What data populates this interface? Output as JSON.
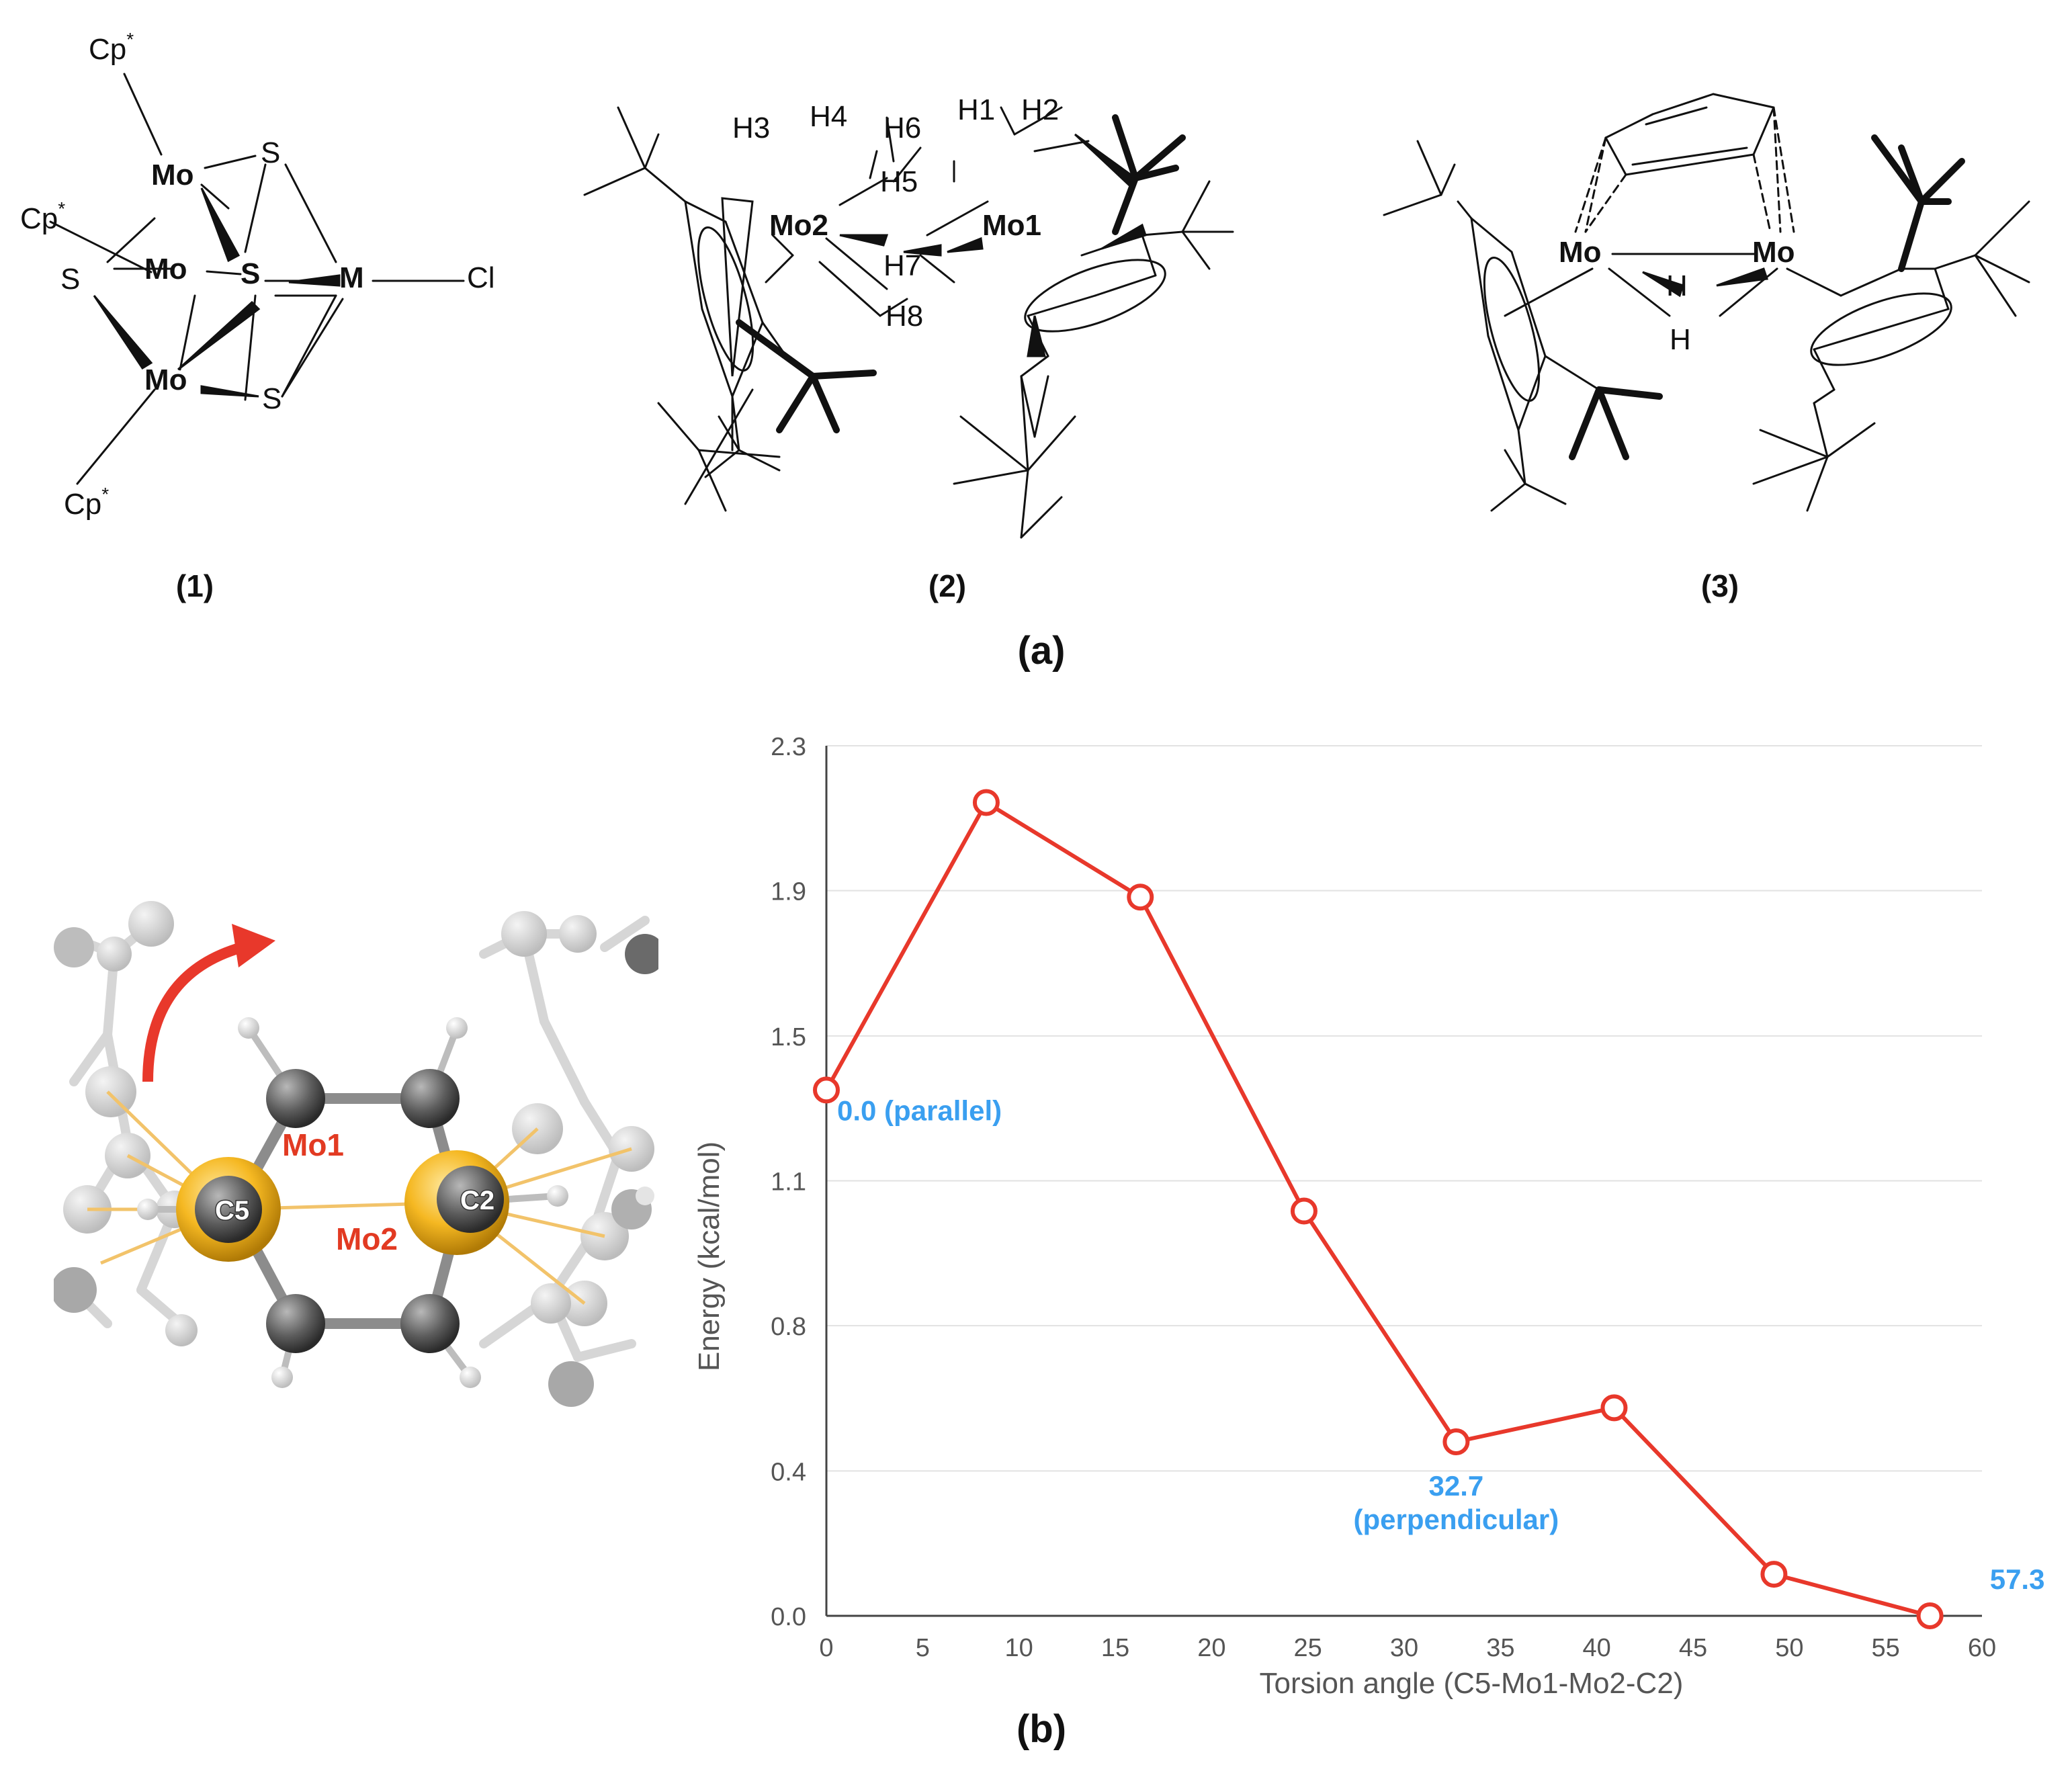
{
  "panel_a": {
    "label": "(a)",
    "compounds": [
      {
        "id": "(1)",
        "atoms": {
          "cp": "Cp",
          "star": "*",
          "mo": "Mo",
          "s": "S",
          "m": "M",
          "cl": "Cl"
        }
      },
      {
        "id": "(2)",
        "atoms": {
          "mo1": "Mo1",
          "mo2": "Mo2",
          "h1": "H1",
          "h2": "H2",
          "h3": "H3",
          "h4": "H4",
          "h5": "H5",
          "h6": "H6",
          "h7": "H7",
          "h8": "H8"
        }
      },
      {
        "id": "(3)",
        "atoms": {
          "mo": "Mo",
          "h": "H"
        }
      }
    ]
  },
  "panel_b": {
    "label": "(b)",
    "model_labels": {
      "mo1": "Mo1",
      "mo2": "Mo2",
      "c5": "C5",
      "c2": "C2"
    },
    "colors": {
      "series": "#e8382b",
      "annotation": "#3a9ff0",
      "arrow": "#e8382b",
      "mo_label": "#e23a22"
    }
  },
  "chart_data": {
    "type": "line",
    "title": "",
    "xlabel": "Torsion angle (C5-Mo1-Mo2-C2)",
    "ylabel": "Energy (kcal/mol)",
    "xlim": [
      0,
      60
    ],
    "ylim": [
      0.0,
      2.3
    ],
    "xticks": [
      "0",
      "5",
      "10",
      "15",
      "20",
      "25",
      "30",
      "35",
      "40",
      "45",
      "50",
      "55",
      "60"
    ],
    "yticks": [
      "0.0",
      "0.4",
      "0.8",
      "1.1",
      "1.5",
      "1.9",
      "2.3"
    ],
    "ytick_values": [
      0.0,
      0.383,
      0.767,
      1.15,
      1.533,
      1.917,
      2.3
    ],
    "grid": true,
    "series": [
      {
        "name": "Energy",
        "x": [
          0.0,
          8.3,
          16.3,
          24.8,
          32.7,
          40.9,
          49.2,
          57.3
        ],
        "values": [
          1.39,
          2.15,
          1.9,
          1.07,
          0.46,
          0.55,
          0.11,
          0.0
        ]
      }
    ],
    "annotations": [
      {
        "text": "0.0 (parallel)",
        "x": 0.0,
        "y": 1.39
      },
      {
        "text": "32.7",
        "x": 32.7,
        "y": 0.46
      },
      {
        "text": "(perpendicular)",
        "x": 32.7,
        "y": 0.46
      },
      {
        "text": "57.3",
        "x": 57.3,
        "y": 0.0
      }
    ]
  }
}
